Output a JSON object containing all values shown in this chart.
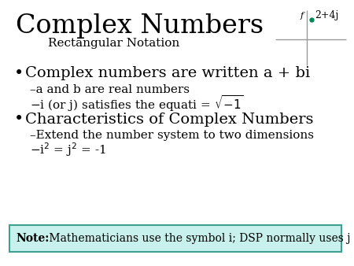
{
  "title": "Complex Numbers",
  "subtitle": "Rectangular Notation",
  "bg_color": "#ffffff",
  "bullet1": "Complex numbers are written a + bi",
  "sub1a": "–a and b are real numbers",
  "sub1b": "–i (or j) satisfies the equati = $\\sqrt{-1}$",
  "bullet2": "Characteristics of Complex Numbers",
  "sub2a": "–Extend the number system to two dimensions",
  "sub2b": "–i$^2$ = j$^2$ = -1",
  "note_bold": "Note:",
  "note_text": " Mathematicians use the symbol i; DSP normally uses j",
  "note_bg": "#c8f0ec",
  "note_border": "#40a090",
  "axis_label": "2+4j",
  "dot_color": "#008855",
  "title_fontsize": 24,
  "subtitle_fontsize": 11,
  "bullet_fontsize": 14,
  "sub_fontsize": 11,
  "note_fontsize": 10
}
